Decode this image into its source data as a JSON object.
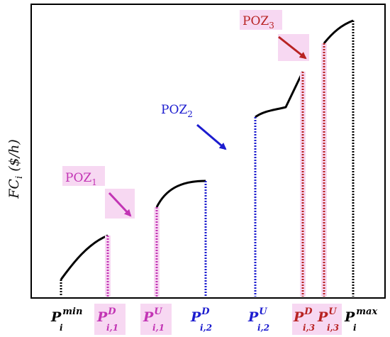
{
  "axis": {
    "y_label_main": "FC",
    "y_label_sub": "i",
    "y_label_unit": " ($/h)"
  },
  "zones": [
    {
      "name": "POZ",
      "index": "1",
      "color": "#c234b4"
    },
    {
      "name": "POZ",
      "index": "2",
      "color": "#1c1ccf"
    },
    {
      "name": "POZ",
      "index": "3",
      "color": "#b82323"
    }
  ],
  "ticks": [
    {
      "main": "P",
      "sub": "i",
      "sup": "min",
      "color": "#000000"
    },
    {
      "main": "P",
      "sub": "i,1",
      "sup": "D",
      "color": "#c234b4"
    },
    {
      "main": "P",
      "sub": "i,1",
      "sup": "U",
      "color": "#c234b4"
    },
    {
      "main": "P",
      "sub": "i,2",
      "sup": "D",
      "color": "#1c1ccf"
    },
    {
      "main": "P",
      "sub": "i,2",
      "sup": "U",
      "color": "#1c1ccf"
    },
    {
      "main": "P",
      "sub": "i,3",
      "sup": "D",
      "color": "#b82323"
    },
    {
      "main": "P",
      "sub": "i,3",
      "sup": "U",
      "color": "#b82323"
    },
    {
      "main": "P",
      "sub": "i",
      "sup": "max",
      "color": "#000000"
    }
  ]
}
